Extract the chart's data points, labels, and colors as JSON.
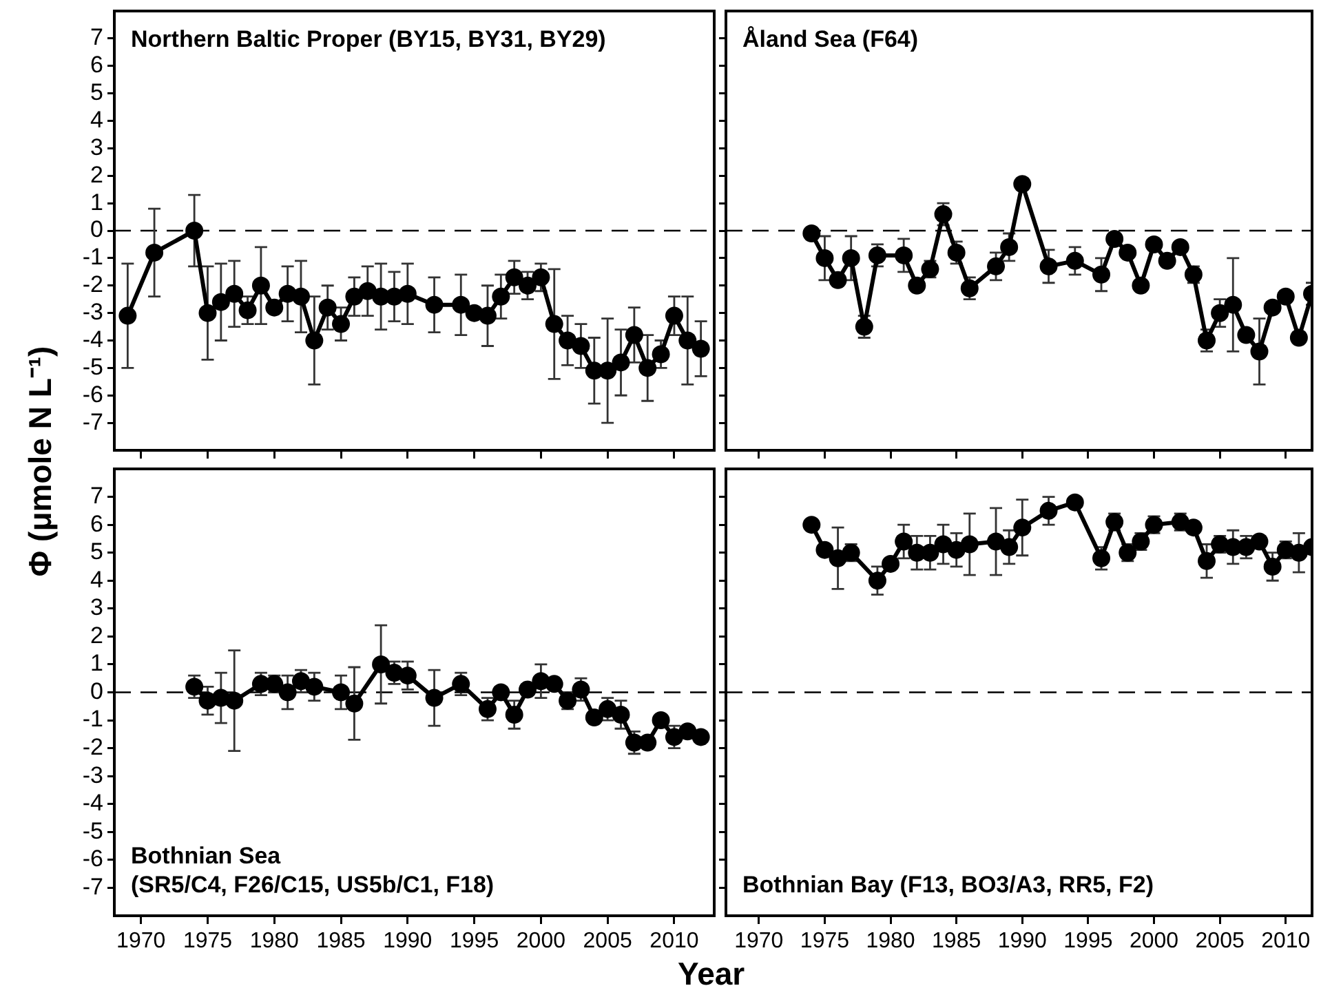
{
  "chart_data": [
    {
      "type": "line",
      "title": "Northern Baltic Proper (BY15, BY31, BY29)",
      "ylabel": "Φ (μmole N L⁻¹)",
      "color": "#000000",
      "marker": "circle",
      "line_style": "solid",
      "tick_labels": "y",
      "x": [
        1969,
        1971,
        1974,
        1975,
        1976,
        1977,
        1978,
        1979,
        1980,
        1981,
        1982,
        1983,
        1984,
        1985,
        1986,
        1987,
        1988,
        1989,
        1990,
        1992,
        1994,
        1995,
        1996,
        1997,
        1998,
        1999,
        2000,
        2001,
        2002,
        2003,
        2004,
        2005,
        2006,
        2007,
        2008,
        2009,
        2010,
        2011,
        2012
      ],
      "values": [
        -3.1,
        -0.8,
        0.0,
        -3.0,
        -2.6,
        -2.3,
        -2.9,
        -2.0,
        -2.8,
        -2.3,
        -2.4,
        -4.0,
        -2.8,
        -3.4,
        -2.4,
        -2.2,
        -2.4,
        -2.4,
        -2.3,
        -2.7,
        -2.7,
        -3.0,
        -3.1,
        -2.4,
        -1.7,
        -2.0,
        -1.7,
        -3.4,
        -4.0,
        -4.2,
        -5.1,
        -5.1,
        -4.8,
        -3.8,
        -5.0,
        -4.5,
        -3.1,
        -4.0,
        -4.3
      ],
      "errors": [
        1.9,
        1.6,
        1.3,
        1.7,
        1.4,
        1.2,
        0.5,
        1.4,
        null,
        1.0,
        1.3,
        1.6,
        0.8,
        0.6,
        0.7,
        0.9,
        1.2,
        0.9,
        1.1,
        1.0,
        1.1,
        null,
        1.1,
        0.8,
        0.6,
        0.5,
        0.5,
        2.0,
        0.9,
        0.8,
        1.2,
        1.9,
        1.2,
        1.0,
        1.2,
        0.5,
        0.7,
        1.6,
        1.0
      ],
      "xlim": [
        1968,
        2013
      ],
      "xticks": [
        1970,
        1975,
        1980,
        1985,
        1990,
        1995,
        2000,
        2005,
        2010
      ],
      "ylim": [
        -8,
        8
      ],
      "yticks": [
        -7,
        -6,
        -5,
        -4,
        -3,
        -2,
        -1,
        0,
        1,
        2,
        3,
        4,
        5,
        6,
        7
      ],
      "ref_lines": [
        {
          "axis": "y",
          "value": 0,
          "color": "#000000",
          "line_style": "dashed"
        }
      ]
    },
    {
      "type": "line",
      "title": "Åland Sea (F64)",
      "color": "#000000",
      "marker": "circle",
      "line_style": "solid",
      "tick_labels": false,
      "x": [
        1974,
        1975,
        1976,
        1977,
        1978,
        1979,
        1981,
        1982,
        1983,
        1984,
        1985,
        1986,
        1988,
        1989,
        1990,
        1992,
        1994,
        1996,
        1997,
        1998,
        1999,
        2000,
        2001,
        2002,
        2003,
        2004,
        2005,
        2006,
        2007,
        2008,
        2009,
        2010,
        2011,
        2012
      ],
      "values": [
        -0.1,
        -1.0,
        -1.8,
        -1.0,
        -3.5,
        -0.9,
        -0.9,
        -2.0,
        -1.4,
        0.6,
        -0.8,
        -2.1,
        -1.3,
        -0.6,
        1.7,
        -1.3,
        -1.1,
        -1.6,
        -0.3,
        -0.8,
        -2.0,
        -0.5,
        -1.1,
        -0.6,
        -1.6,
        -4.0,
        -3.0,
        -2.7,
        -3.8,
        -4.4,
        -2.8,
        -2.4,
        -3.9,
        -2.3
      ],
      "errors": [
        null,
        0.8,
        0.2,
        0.8,
        0.4,
        0.4,
        0.6,
        null,
        0.3,
        0.4,
        0.4,
        0.4,
        0.5,
        0.5,
        0.2,
        0.6,
        0.5,
        0.6,
        null,
        null,
        null,
        null,
        null,
        null,
        0.3,
        0.4,
        0.5,
        1.7,
        null,
        1.2,
        null,
        null,
        null,
        0.4
      ],
      "xlim": [
        1967.5,
        2012
      ],
      "xticks": [
        1970,
        1975,
        1980,
        1985,
        1990,
        1995,
        2000,
        2005,
        2010
      ],
      "ylim": [
        -8,
        8
      ],
      "yticks": [
        -7,
        -6,
        -5,
        -4,
        -3,
        -2,
        -1,
        0,
        1,
        2,
        3,
        4,
        5,
        6,
        7
      ],
      "ref_lines": [
        {
          "axis": "y",
          "value": 0,
          "color": "#000000",
          "line_style": "dashed"
        }
      ]
    },
    {
      "type": "line",
      "title": "Bothnian Sea",
      "subtitle": "(SR5/C4, F26/C15, US5b/C1, F18)",
      "xlabel": "Year",
      "color": "#000000",
      "marker": "circle",
      "line_style": "solid",
      "x": [
        1974,
        1975,
        1976,
        1977,
        1979,
        1980,
        1981,
        1982,
        1983,
        1985,
        1986,
        1988,
        1989,
        1990,
        1992,
        1994,
        1996,
        1997,
        1998,
        1999,
        2000,
        2001,
        2002,
        2003,
        2004,
        2005,
        2006,
        2007,
        2008,
        2009,
        2010,
        2011,
        2012
      ],
      "values": [
        0.2,
        -0.3,
        -0.2,
        -0.3,
        0.3,
        0.3,
        0.0,
        0.4,
        0.2,
        0.0,
        -0.4,
        1.0,
        0.7,
        0.6,
        -0.2,
        0.3,
        -0.6,
        0.0,
        -0.8,
        0.1,
        0.4,
        0.3,
        -0.3,
        0.1,
        -0.9,
        -0.6,
        -0.8,
        -1.8,
        -1.8,
        -1.0,
        -1.6,
        -1.4,
        -1.6
      ],
      "errors": [
        0.4,
        0.5,
        0.9,
        1.8,
        0.4,
        0.3,
        0.6,
        0.4,
        0.5,
        0.6,
        1.3,
        1.4,
        0.4,
        0.5,
        1.0,
        0.4,
        0.4,
        null,
        0.5,
        null,
        0.6,
        null,
        0.3,
        0.4,
        null,
        0.4,
        0.5,
        0.4,
        null,
        null,
        0.4,
        null,
        null
      ],
      "xlim": [
        1968,
        2013
      ],
      "xticks": [
        1970,
        1975,
        1980,
        1985,
        1990,
        1995,
        2000,
        2005,
        2010
      ],
      "ylim": [
        -8,
        8
      ],
      "yticks": [
        -7,
        -6,
        -5,
        -4,
        -3,
        -2,
        -1,
        0,
        1,
        2,
        3,
        4,
        5,
        6,
        7
      ],
      "ref_lines": [
        {
          "axis": "y",
          "value": 0,
          "color": "#000000",
          "line_style": "dashed"
        }
      ]
    },
    {
      "type": "line",
      "title": "Bothnian Bay (F13, BO3/A3, RR5, F2)",
      "color": "#000000",
      "marker": "circle",
      "line_style": "solid",
      "tick_labels": "x",
      "x": [
        1974,
        1975,
        1976,
        1977,
        1979,
        1980,
        1981,
        1982,
        1983,
        1984,
        1985,
        1986,
        1988,
        1989,
        1990,
        1992,
        1994,
        1996,
        1997,
        1998,
        1999,
        2000,
        2002,
        2003,
        2004,
        2005,
        2006,
        2007,
        2008,
        2009,
        2010,
        2011,
        2012
      ],
      "values": [
        6.0,
        5.1,
        4.8,
        5.0,
        4.0,
        4.6,
        5.4,
        5.0,
        5.0,
        5.3,
        5.1,
        5.3,
        5.4,
        5.2,
        5.9,
        6.5,
        6.8,
        4.8,
        6.1,
        5.0,
        5.4,
        6.0,
        6.1,
        5.9,
        4.7,
        5.3,
        5.2,
        5.2,
        5.4,
        4.5,
        5.1,
        5.0,
        5.2
      ],
      "errors": [
        null,
        null,
        1.1,
        0.3,
        0.5,
        null,
        0.6,
        0.6,
        0.6,
        0.7,
        0.6,
        1.1,
        1.2,
        0.6,
        1.0,
        0.5,
        null,
        0.4,
        0.3,
        0.3,
        0.3,
        0.3,
        0.3,
        0.2,
        0.6,
        0.3,
        0.6,
        0.4,
        null,
        0.5,
        0.3,
        0.7,
        null
      ],
      "xlim": [
        1967.5,
        2012
      ],
      "xticks": [
        1970,
        1975,
        1980,
        1985,
        1990,
        1995,
        2000,
        2005,
        2010
      ],
      "ylim": [
        -8,
        8
      ],
      "yticks": [
        -7,
        -6,
        -5,
        -4,
        -3,
        -2,
        -1,
        0,
        1,
        2,
        3,
        4,
        5,
        6,
        7
      ],
      "ref_lines": [
        {
          "axis": "y",
          "value": 0,
          "color": "#000000",
          "line_style": "dashed"
        }
      ]
    }
  ]
}
